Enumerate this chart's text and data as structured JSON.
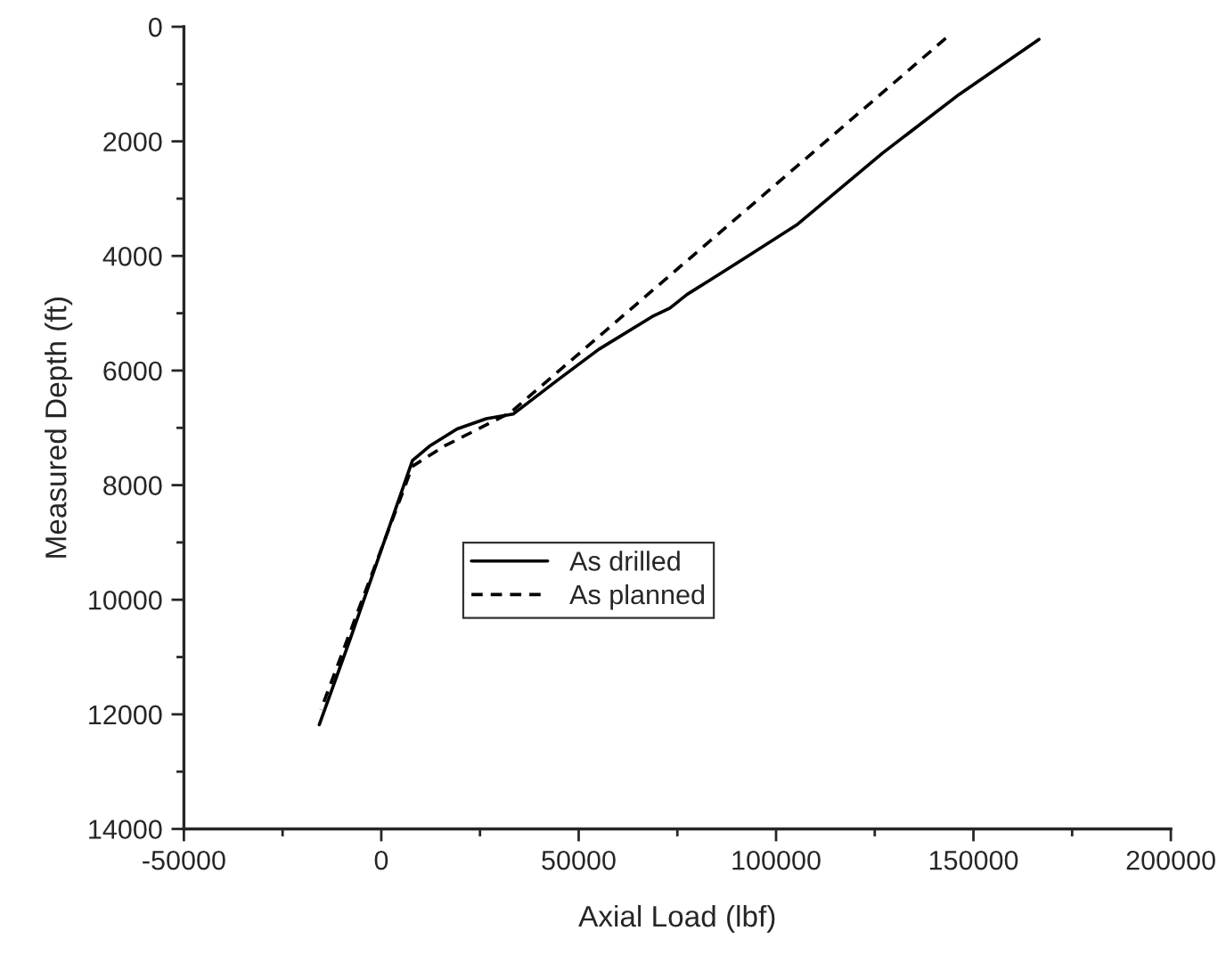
{
  "chart_data": {
    "type": "line",
    "xlabel": "Axial Load (lbf)",
    "ylabel": "Measured Depth (ft)",
    "xlim": [
      -50000,
      200000
    ],
    "xticks": [
      -50000,
      0,
      50000,
      100000,
      150000,
      200000
    ],
    "ylim": [
      14000,
      0
    ],
    "yticks": [
      0,
      2000,
      4000,
      6000,
      8000,
      10000,
      12000,
      14000
    ],
    "grid": false,
    "legend": "center",
    "series": [
      {
        "name": "As drilled",
        "color": "#000000",
        "line_style": "solid",
        "x": [
          -15700,
          -7800,
          7900,
          12400,
          19200,
          26600,
          33400,
          44600,
          55100,
          68600,
          73100,
          77500,
          83500,
          91800,
          105200,
          126900,
          146400,
          166600
        ],
        "values": [
          12180,
          10670,
          7570,
          7310,
          7020,
          6840,
          6760,
          6170,
          5630,
          5060,
          4910,
          4670,
          4410,
          4050,
          3460,
          2210,
          1180,
          220
        ]
      },
      {
        "name": "As planned",
        "color": "#000000",
        "line_style": "dashed",
        "x": [
          -15300,
          7900,
          16200,
          32600,
          143000
        ],
        "values": [
          11920,
          7670,
          7310,
          6740,
          200
        ]
      }
    ]
  }
}
